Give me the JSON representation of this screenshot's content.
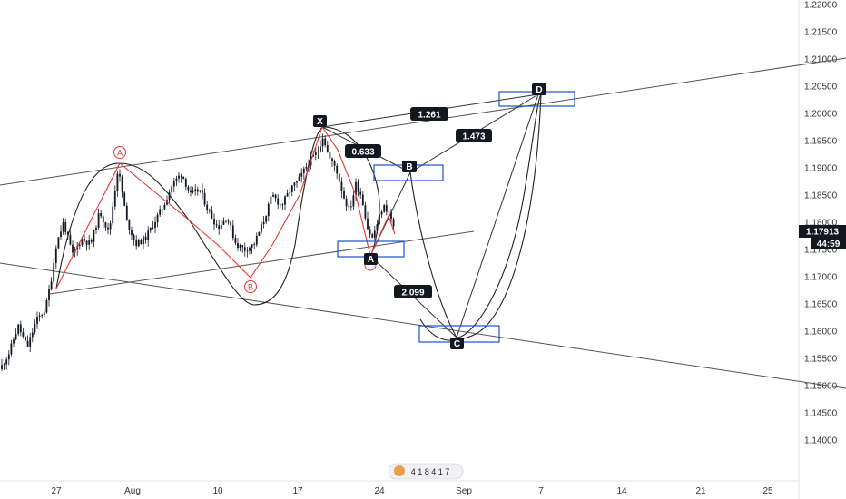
{
  "chart_data": {
    "type": "candlestick",
    "instrument_price": "1.17913",
    "countdown": "44:59",
    "x_tick_labels": [
      "27",
      "Aug",
      "10",
      "17",
      "24",
      "Sep",
      "7",
      "14",
      "21",
      "25"
    ],
    "y_tick_labels": [
      "1.22000",
      "1.21500",
      "1.21000",
      "1.20500",
      "1.20000",
      "1.19500",
      "1.19000",
      "1.18500",
      "1.18000",
      "1.17500",
      "1.17000",
      "1.16500",
      "1.16000",
      "1.15500",
      "1.15000",
      "1.14500",
      "1.14000"
    ],
    "ylim": [
      1.1365,
      1.2205
    ],
    "pattern_points": [
      {
        "label": "X",
        "price": 1.1966
      },
      {
        "label": "A",
        "price": 1.1755
      },
      {
        "label": "B",
        "price": 1.189
      },
      {
        "label": "C",
        "price": 1.161
      },
      {
        "label": "D",
        "price": 1.2025
      }
    ],
    "minor_pattern_points": [
      {
        "label": "A",
        "price": 1.1912
      },
      {
        "label": "B",
        "price": 1.1712
      }
    ],
    "ratios": [
      "1.261",
      "0.633",
      "1.473",
      "2.099"
    ],
    "bottom_label": "4 1 8 4 1 7"
  },
  "colors": {
    "background": "#ffffff",
    "candle": "#131722",
    "pattern_red": "#e53935",
    "lines": "#555555",
    "box_blue": "#1e50c8",
    "label_bg": "#131722"
  }
}
